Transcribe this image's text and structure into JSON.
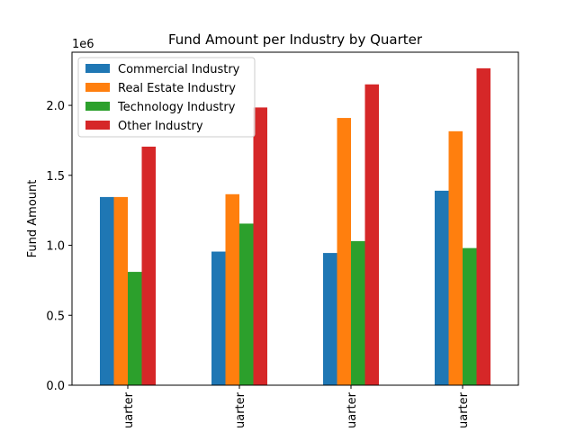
{
  "chart_data": {
    "type": "bar",
    "title": "Fund Amount per Industry by Quarter",
    "xlabel": "",
    "ylabel": "Fund Amount",
    "y_offset_label": "1e6",
    "ylim": [
      0,
      2380000
    ],
    "yticks": [
      0,
      500000,
      1000000,
      1500000,
      2000000
    ],
    "ytick_labels": [
      "0.0",
      "0.5",
      "1.0",
      "1.5",
      "2.0"
    ],
    "categories": [
      "uarter",
      "uarter",
      "uarter",
      "uarter"
    ],
    "grid": false,
    "legend_position": "top-left",
    "series": [
      {
        "name": "Commercial Industry",
        "color": "#1f77b4",
        "values": [
          1345000,
          955000,
          945000,
          1390000
        ]
      },
      {
        "name": "Real Estate Industry",
        "color": "#ff7f0e",
        "values": [
          1345000,
          1365000,
          1910000,
          1815000
        ]
      },
      {
        "name": "Technology Industry",
        "color": "#2ca02c",
        "values": [
          810000,
          1155000,
          1030000,
          980000
        ]
      },
      {
        "name": "Other Industry",
        "color": "#d62728",
        "values": [
          1705000,
          1985000,
          2150000,
          2265000
        ]
      }
    ]
  }
}
